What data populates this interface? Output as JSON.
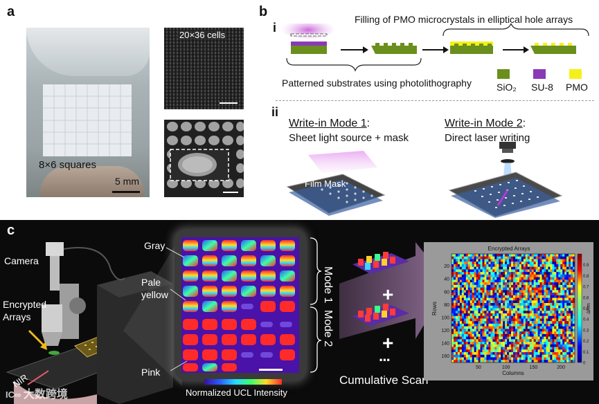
{
  "panel_a": {
    "letter": "a",
    "photo_label": "8×6 squares",
    "scale_bar": "5 mm",
    "sem_top_label": "20×36 cells"
  },
  "panel_b": {
    "letter": "b",
    "sub_i": "i",
    "sub_ii": "ii",
    "filling_caption": "Filling of PMO microcrystals in elliptical hole arrays",
    "patterned_caption": "Patterned substrates using photolithography",
    "legend": [
      {
        "label": "SiO₂",
        "color": "#6a8f1c"
      },
      {
        "label": "SU-8",
        "color": "#8a3ab5"
      },
      {
        "label": "PMO",
        "color": "#f5f01a"
      }
    ],
    "mode1_title": "Write-in Mode 1",
    "mode1_colon": ":",
    "mode1_desc": "Sheet light source + mask",
    "mode2_title": "Write-in Mode 2",
    "mode2_colon": ":",
    "mode2_desc": "Direct laser writing",
    "film_mask": "Film Mask"
  },
  "panel_c": {
    "letter": "c",
    "camera": "Camera",
    "encrypted_arrays_1": "Encrypted",
    "encrypted_arrays_2": "Arrays",
    "nir": "NIR",
    "gray": "Gray",
    "pale_yellow_1": "Pale",
    "pale_yellow_2": "yellow",
    "pink": "Pink",
    "mode1": "Mode 1",
    "mode2": "Mode 2",
    "plus": "+",
    "ellipsis": "···",
    "cumulative_scan": "Cumulative Scan",
    "colorbar_caption": "Normalized UCL Intensity",
    "watermark": "大数跨境"
  },
  "chart_data": {
    "type": "heatmap",
    "title": "Encrypted Arrays",
    "xlabel": "Columns",
    "ylabel": "Rows",
    "xticks": [
      "50",
      "100",
      "150",
      "200"
    ],
    "yticks": [
      "20",
      "40",
      "60",
      "80",
      "100",
      "120",
      "140",
      "160"
    ],
    "colorbar_label": "ΔRm",
    "colorbar_ticks": [
      "0",
      "0.1",
      "0.2",
      "0.3",
      "0.4",
      "0.5",
      "0.6",
      "0.7",
      "0.8",
      "0.9"
    ],
    "xlim": [
      1,
      225
    ],
    "ylim": [
      1,
      170
    ]
  }
}
